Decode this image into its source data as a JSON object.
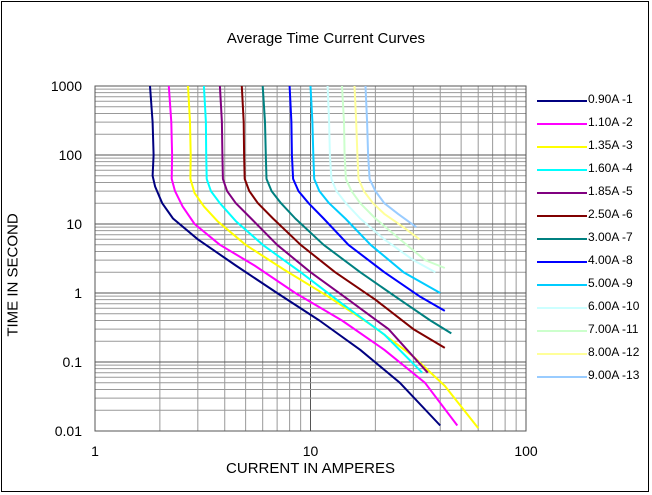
{
  "chart_data": {
    "type": "line",
    "title": "Average Time Current Curves",
    "xlabel": "CURRENT IN AMPERES",
    "ylabel": "TIME IN SECOND",
    "x_scale": "log",
    "y_scale": "log",
    "xlim": [
      1,
      100
    ],
    "ylim": [
      0.01,
      1000
    ],
    "x_ticks": [
      "1",
      "10",
      "100"
    ],
    "y_ticks": [
      "1000",
      "100",
      "10",
      "1",
      "0.1",
      "0.01"
    ],
    "grid": true,
    "legend_position": "right",
    "series": [
      {
        "name": "0.90A  -1",
        "color": "#000080",
        "points": [
          [
            1.8,
            1000
          ],
          [
            1.85,
            300
          ],
          [
            1.87,
            100
          ],
          [
            1.85,
            50
          ],
          [
            1.9,
            35
          ],
          [
            2.05,
            20
          ],
          [
            2.3,
            12
          ],
          [
            3.0,
            6
          ],
          [
            4.5,
            2.5
          ],
          [
            7,
            1
          ],
          [
            11,
            0.4
          ],
          [
            17,
            0.15
          ],
          [
            26,
            0.05
          ],
          [
            40,
            0.012
          ]
        ]
      },
      {
        "name": "1.10A  -2",
        "color": "#FF00FF",
        "points": [
          [
            2.2,
            1000
          ],
          [
            2.26,
            300
          ],
          [
            2.28,
            100
          ],
          [
            2.27,
            45
          ],
          [
            2.35,
            30
          ],
          [
            2.55,
            18
          ],
          [
            2.9,
            10
          ],
          [
            3.8,
            5
          ],
          [
            5.5,
            2.5
          ],
          [
            8.5,
            1
          ],
          [
            14,
            0.4
          ],
          [
            22,
            0.15
          ],
          [
            34,
            0.05
          ],
          [
            48,
            0.012
          ]
        ]
      },
      {
        "name": "1.35A  -3",
        "color": "#FFFF00",
        "points": [
          [
            2.7,
            1000
          ],
          [
            2.76,
            300
          ],
          [
            2.78,
            100
          ],
          [
            2.77,
            45
          ],
          [
            2.9,
            28
          ],
          [
            3.2,
            18
          ],
          [
            3.7,
            11
          ],
          [
            5,
            5
          ],
          [
            7.5,
            2.2
          ],
          [
            12,
            0.9
          ],
          [
            19,
            0.35
          ],
          [
            30,
            0.12
          ],
          [
            42,
            0.045
          ],
          [
            60,
            0.011
          ]
        ]
      },
      {
        "name": "1.60A  -4",
        "color": "#00FFFF",
        "points": [
          [
            3.2,
            1000
          ],
          [
            3.27,
            300
          ],
          [
            3.28,
            100
          ],
          [
            3.3,
            45
          ],
          [
            3.45,
            30
          ],
          [
            3.8,
            20
          ],
          [
            4.5,
            11
          ],
          [
            6,
            5
          ],
          [
            9,
            2
          ],
          [
            14,
            0.7
          ],
          [
            22,
            0.25
          ],
          [
            33,
            0.07
          ]
        ]
      },
      {
        "name": "1.85A  -5",
        "color": "#800080",
        "points": [
          [
            3.8,
            1000
          ],
          [
            3.88,
            300
          ],
          [
            3.9,
            100
          ],
          [
            3.92,
            45
          ],
          [
            4.1,
            30
          ],
          [
            4.5,
            20
          ],
          [
            5.3,
            12
          ],
          [
            7,
            5
          ],
          [
            10,
            2
          ],
          [
            15,
            0.8
          ],
          [
            23,
            0.3
          ],
          [
            35,
            0.07
          ]
        ]
      },
      {
        "name": "2.50A  -6",
        "color": "#800000",
        "points": [
          [
            4.8,
            1000
          ],
          [
            4.9,
            300
          ],
          [
            4.92,
            100
          ],
          [
            4.95,
            45
          ],
          [
            5.2,
            30
          ],
          [
            5.7,
            20
          ],
          [
            6.7,
            12
          ],
          [
            9,
            5
          ],
          [
            13,
            2
          ],
          [
            20,
            0.8
          ],
          [
            30,
            0.3
          ],
          [
            42,
            0.16
          ]
        ]
      },
      {
        "name": "3.00A  -7",
        "color": "#008080",
        "points": [
          [
            6,
            1000
          ],
          [
            6.15,
            300
          ],
          [
            6.2,
            100
          ],
          [
            6.25,
            45
          ],
          [
            6.6,
            30
          ],
          [
            7.3,
            20
          ],
          [
            8.5,
            12
          ],
          [
            11.5,
            5
          ],
          [
            17,
            2
          ],
          [
            26,
            0.8
          ],
          [
            36,
            0.4
          ],
          [
            45,
            0.26
          ]
        ]
      },
      {
        "name": "4.00A  -8",
        "color": "#0000FF",
        "points": [
          [
            8,
            1000
          ],
          [
            8.15,
            300
          ],
          [
            8.2,
            100
          ],
          [
            8.3,
            45
          ],
          [
            8.8,
            30
          ],
          [
            9.8,
            20
          ],
          [
            11.5,
            12
          ],
          [
            15,
            5
          ],
          [
            22,
            2
          ],
          [
            32,
            0.9
          ],
          [
            42,
            0.55
          ]
        ]
      },
      {
        "name": "5.00A  -9",
        "color": "#00CCFF",
        "points": [
          [
            10,
            1000
          ],
          [
            10.2,
            300
          ],
          [
            10.3,
            100
          ],
          [
            10.4,
            45
          ],
          [
            11,
            30
          ],
          [
            12.2,
            20
          ],
          [
            14.5,
            12
          ],
          [
            19,
            5
          ],
          [
            27,
            2
          ],
          [
            40,
            1
          ]
        ]
      },
      {
        "name": "6.00A  -10",
        "color": "#CCFFFF",
        "points": [
          [
            12,
            1000
          ],
          [
            12.2,
            300
          ],
          [
            12.3,
            100
          ],
          [
            12.5,
            45
          ],
          [
            13.2,
            30
          ],
          [
            14.6,
            20
          ],
          [
            17,
            12
          ],
          [
            22,
            6
          ],
          [
            30,
            3
          ],
          [
            38,
            2
          ]
        ]
      },
      {
        "name": "7.00A  -11",
        "color": "#CCFFCC",
        "points": [
          [
            14,
            1000
          ],
          [
            14.3,
            300
          ],
          [
            14.4,
            100
          ],
          [
            14.6,
            45
          ],
          [
            15.5,
            30
          ],
          [
            17,
            20
          ],
          [
            20,
            12
          ],
          [
            26,
            6
          ],
          [
            34,
            3
          ],
          [
            42,
            2.3
          ]
        ]
      },
      {
        "name": "8.00A  -12",
        "color": "#FFFF99",
        "points": [
          [
            16,
            1000
          ],
          [
            16.3,
            300
          ],
          [
            16.5,
            100
          ],
          [
            16.7,
            45
          ],
          [
            17.7,
            30
          ],
          [
            19.5,
            20
          ],
          [
            22,
            14
          ],
          [
            27,
            9
          ],
          [
            32,
            6
          ]
        ]
      },
      {
        "name": "9.00A  -13",
        "color": "#99CCFF",
        "points": [
          [
            18,
            1000
          ],
          [
            18.3,
            300
          ],
          [
            18.5,
            100
          ],
          [
            18.8,
            45
          ],
          [
            20,
            30
          ],
          [
            22,
            20
          ],
          [
            25.5,
            14
          ],
          [
            31,
            9
          ]
        ]
      }
    ]
  }
}
